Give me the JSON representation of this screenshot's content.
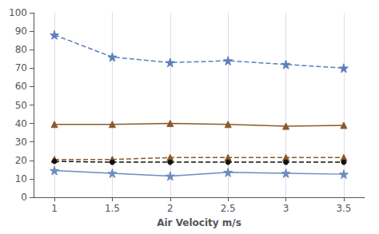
{
  "chart_data": {
    "type": "line",
    "x": [
      1,
      1.5,
      2,
      2.5,
      3,
      3.5
    ],
    "series": [
      {
        "color": "#5b7fbe",
        "line_style": "dashed",
        "marker": "star",
        "values": [
          88,
          76,
          73,
          74,
          72,
          70
        ]
      },
      {
        "color": "#8B5A2B",
        "line_style": "solid",
        "marker": "triangle",
        "values": [
          39.5,
          39.5,
          40,
          39.5,
          38.5,
          39
        ]
      },
      {
        "color": "#8B5A2B",
        "line_style": "dashed",
        "marker": "triangle",
        "values": [
          20.5,
          20.5,
          21.5,
          21.5,
          21.5,
          21.5
        ]
      },
      {
        "color": "#111111",
        "line_style": "dashed",
        "marker": "circle",
        "values": [
          19.5,
          19,
          19,
          19,
          19,
          19
        ]
      },
      {
        "color": "#6b8cbe",
        "line_style": "solid",
        "marker": "star",
        "values": [
          14.5,
          13,
          11.5,
          13.5,
          13,
          12.5
        ]
      }
    ],
    "xlabel": "Air Velocity m/s",
    "xlim": [
      0.82,
      3.68
    ],
    "xticks": [
      1,
      1.5,
      2,
      2.5,
      3,
      3.5
    ],
    "ylim": [
      0,
      100
    ],
    "yticks": [
      0,
      10,
      20,
      30,
      40,
      50,
      60,
      70,
      80,
      90,
      100
    ],
    "grid": "x"
  }
}
